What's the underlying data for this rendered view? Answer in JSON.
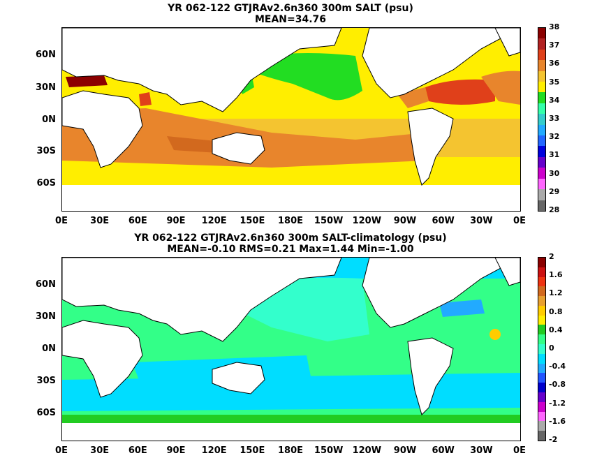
{
  "maps": [
    {
      "title_line1": "YR 062-122 GTJRAv2.6n360 300m SALT (psu)",
      "title_line2": "MEAN=34.76",
      "colorbar_labels": [
        "38",
        "37",
        "36",
        "35",
        "34",
        "33",
        "32",
        "31",
        "30",
        "29",
        "28"
      ],
      "colorbar_colors": [
        "#8b0000",
        "#b22222",
        "#e0401a",
        "#e8852c",
        "#f4c430",
        "#ffee00",
        "#22dd22",
        "#33ffaa",
        "#33cccc",
        "#22aaff",
        "#2266ff",
        "#0000dd",
        "#6600cc",
        "#cc00cc",
        "#ff66ff",
        "#aaaaaa",
        "#666666"
      ]
    },
    {
      "title_line1": "YR 062-122 GTJRAv2.6n360 300m SALT-climatology (psu)",
      "title_line2": "MEAN=-0.10   RMS=0.21   Max=1.44   Min=-1.00",
      "colorbar_labels": [
        "2",
        "1.6",
        "1.2",
        "0.8",
        "0.4",
        "0",
        "-0.4",
        "-0.8",
        "-1.2",
        "-1.6",
        "-2"
      ],
      "colorbar_colors": [
        "#8b0000",
        "#cc1111",
        "#ee3311",
        "#d2691e",
        "#e8a030",
        "#ffcc00",
        "#ffee00",
        "#22cc22",
        "#33ff88",
        "#33ffcc",
        "#00ddff",
        "#22aaff",
        "#2255ff",
        "#0000cc",
        "#6600cc",
        "#cc00cc",
        "#ff66ff",
        "#aaaaaa",
        "#666666"
      ]
    }
  ],
  "lat_labels": [
    "60N",
    "30N",
    "0N",
    "30S",
    "60S"
  ],
  "lon_labels": [
    "0E",
    "30E",
    "60E",
    "90E",
    "120E",
    "150E",
    "180E",
    "150W",
    "120W",
    "90W",
    "60W",
    "30W",
    "0E"
  ]
}
